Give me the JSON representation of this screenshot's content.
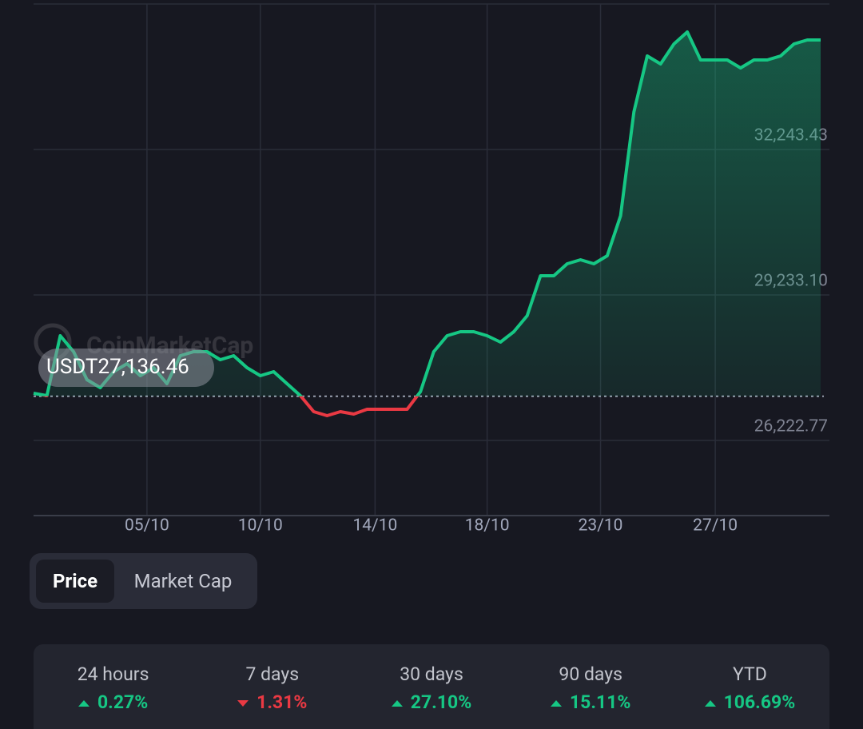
{
  "chart_data": {
    "type": "line",
    "watermark": "CoinMarketCap",
    "x": [
      0,
      1,
      2,
      3,
      4,
      5,
      6,
      7,
      8,
      9,
      10,
      11,
      12,
      13,
      14,
      15,
      16,
      17,
      18,
      19,
      20,
      21,
      22,
      23,
      24,
      25,
      26,
      27,
      28,
      29,
      30,
      31,
      32,
      33,
      34,
      35,
      36,
      37,
      38,
      39,
      40,
      41,
      42,
      43,
      44,
      45,
      46,
      47,
      48,
      49,
      50,
      51,
      52,
      53,
      54,
      55,
      56,
      57,
      58,
      59
    ],
    "series": [
      {
        "name": "Price",
        "color": "#16c784",
        "down_color": "#ea3943",
        "values": [
          27198.6,
          27149.0,
          28389.5,
          28058.7,
          27479.8,
          27314.4,
          27645.2,
          27810.6,
          27562.5,
          27727.9,
          27397.1,
          27976.0,
          28058.7,
          28058.7,
          27893.3,
          27976.0,
          27727.9,
          27562.5,
          27645.2,
          27397.1,
          27149.0,
          26818.2,
          26735.5,
          26818.2,
          26768.6,
          26867.9,
          26867.9,
          26867.9,
          26867.9,
          27231.7,
          28058.7,
          28389.5,
          28472.2,
          28472.2,
          28389.5,
          28257.2,
          28472.2,
          28803.0,
          29630.0,
          29630.0,
          29878.1,
          29960.8,
          29878.1,
          30043.5,
          30870.5,
          33020.7,
          34178.5,
          34013.1,
          34426.6,
          34674.7,
          34095.8,
          34095.8,
          34095.8,
          33930.4,
          34095.8,
          34095.8,
          34178.5,
          34426.6,
          34509.3,
          34509.3
        ]
      }
    ],
    "baseline": {
      "value": 27136.46,
      "label": "USDT27,136.46"
    },
    "xlim": [
      0,
      59
    ],
    "xticks": [
      {
        "value": 8.5,
        "label": "05/10"
      },
      {
        "value": 17.0,
        "label": "10/10"
      },
      {
        "value": 25.6,
        "label": "14/10"
      },
      {
        "value": 34.0,
        "label": "18/10"
      },
      {
        "value": 42.5,
        "label": "23/10"
      },
      {
        "value": 51.1,
        "label": "27/10"
      }
    ],
    "ylim": [
      24668,
      35254
    ],
    "yticks": [
      {
        "value": 26222.77,
        "label": "26,222.77"
      },
      {
        "value": 29233.1,
        "label": "29,233.10"
      },
      {
        "value": 32243.43,
        "label": "32,243.43"
      }
    ],
    "grid": true
  },
  "toggle": {
    "options": [
      "Price",
      "Market Cap"
    ],
    "selected": 0
  },
  "stats": [
    {
      "label": "24 hours",
      "change": "0.27%",
      "direction": "up"
    },
    {
      "label": "7 days",
      "change": "1.31%",
      "direction": "down"
    },
    {
      "label": "30 days",
      "change": "27.10%",
      "direction": "up"
    },
    {
      "label": "90 days",
      "change": "15.11%",
      "direction": "up"
    },
    {
      "label": "YTD",
      "change": "106.69%",
      "direction": "up"
    }
  ]
}
